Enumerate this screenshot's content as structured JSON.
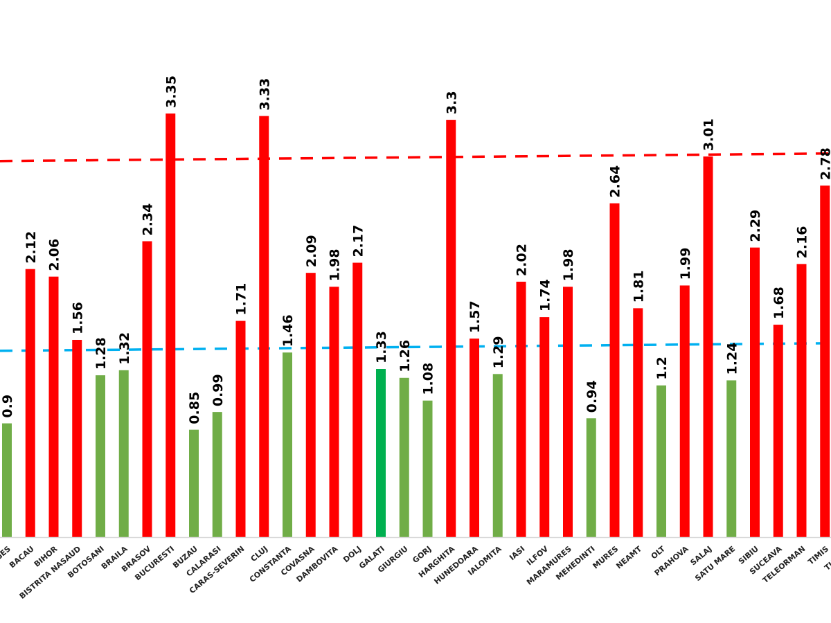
{
  "chart_data": {
    "type": "bar",
    "title": "",
    "xlabel": "",
    "ylabel": "",
    "ylim": [
      0,
      3.5
    ],
    "grid": false,
    "legend": "none",
    "categories": [
      "ARGES",
      "BACAU",
      "BIHOR",
      "BISTRITA NASAUD",
      "BOTOSANI",
      "BRAILA",
      "BRASOV",
      "BUCURESTI",
      "BUZAU",
      "CALARASI",
      "CARAS-SEVERIN",
      "CLUJ",
      "CONSTANTA",
      "COVASNA",
      "DAMBOVITA",
      "DOLJ",
      "GALATI",
      "GIURGIU",
      "GORJ",
      "HARGHITA",
      "HUNEDOARA",
      "IALOMITA",
      "IASI",
      "ILFOV",
      "MARAMURES",
      "MEHEDINTI",
      "MURES",
      "NEAMT",
      "OLT",
      "PRAHOVA",
      "SALAJ",
      "SATU MARE",
      "SIBIU",
      "SUCEAVA",
      "TELEORMAN",
      "TIMIS",
      "TULCEA"
    ],
    "values": [
      0.9,
      2.12,
      2.06,
      1.56,
      1.28,
      1.32,
      2.34,
      3.35,
      0.85,
      0.99,
      1.71,
      3.33,
      1.46,
      2.09,
      1.98,
      2.17,
      1.33,
      1.26,
      1.08,
      3.3,
      1.57,
      1.29,
      2.02,
      1.74,
      1.98,
      0.94,
      2.64,
      1.81,
      1.2,
      1.99,
      3.01,
      1.24,
      2.29,
      1.68,
      2.16,
      2.78,
      null
    ],
    "value_labels": [
      "0.9",
      "2.12",
      "2.06",
      "1.56",
      "1.28",
      "1.32",
      "2.34",
      "3.35",
      "0.85",
      "0.99",
      "1.71",
      "3.33",
      "1.46",
      "2.09",
      "1.98",
      "2.17",
      "1.33",
      "1.26",
      "1.08",
      "3.3",
      "1.57",
      "1.29",
      "2.02",
      "1.74",
      "1.98",
      "0.94",
      "2.64",
      "1.81",
      "1.2",
      "1.99",
      "3.01",
      "1.24",
      "2.29",
      "1.68",
      "2.16",
      "2.78",
      ""
    ],
    "bar_colors": [
      "#70ad47",
      "#ff0000",
      "#ff0000",
      "#ff0000",
      "#70ad47",
      "#70ad47",
      "#ff0000",
      "#ff0000",
      "#70ad47",
      "#70ad47",
      "#ff0000",
      "#ff0000",
      "#70ad47",
      "#ff0000",
      "#ff0000",
      "#ff0000",
      "#00b050",
      "#70ad47",
      "#70ad47",
      "#ff0000",
      "#ff0000",
      "#70ad47",
      "#ff0000",
      "#ff0000",
      "#ff0000",
      "#70ad47",
      "#ff0000",
      "#ff0000",
      "#70ad47",
      "#ff0000",
      "#ff0000",
      "#70ad47",
      "#ff0000",
      "#ff0000",
      "#ff0000",
      "#ff0000",
      "#ff0000"
    ],
    "reference_lines": [
      {
        "name": "upper-threshold",
        "value": 2.99,
        "color": "#ff0000",
        "style": "dashed"
      },
      {
        "name": "lower-threshold",
        "value": 1.49,
        "color": "#00b0f0",
        "style": "dashed"
      }
    ],
    "axis_color": "#d9d9d9"
  }
}
